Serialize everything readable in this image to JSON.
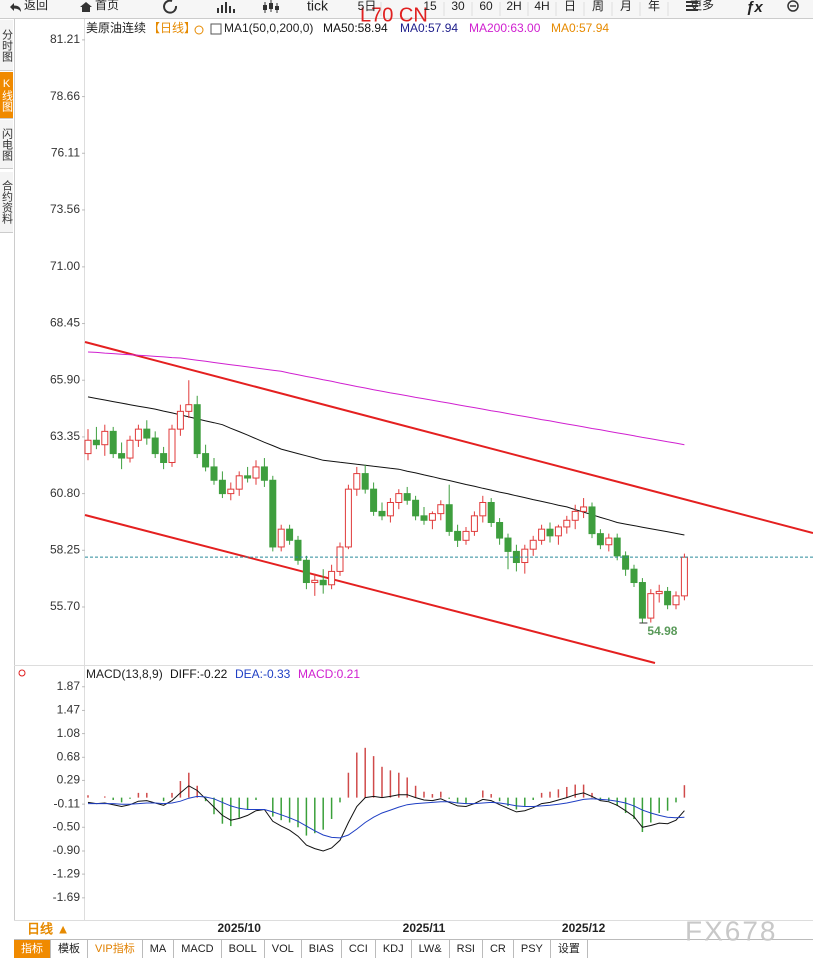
{
  "toolbar": {
    "back": "返回",
    "home": "首页",
    "tick": "tick",
    "periods": [
      "5日",
      "15",
      "30",
      "60",
      "2H",
      "4H",
      "日",
      "周",
      "月",
      "年"
    ],
    "more": "更多",
    "symbol": "L70 CN"
  },
  "sidebar": [
    "分时图",
    "K线图",
    "闪电图",
    "合约资料"
  ],
  "period_button": "日线 ▲",
  "tabs": [
    "指标",
    "模板",
    "VIP指标",
    "MA",
    "MACD",
    "BOLL",
    "VOL",
    "BIAS",
    "CCI",
    "KDJ",
    "LW&",
    "RSI",
    "CR",
    "PSY",
    "设置"
  ],
  "watermark": "FX678",
  "chart_data": [
    {
      "type": "candlestick",
      "title": "美原油连续",
      "subtitle": "【日线】",
      "indicator": "MA1(50,0,200,0)",
      "categories": [
        null,
        null,
        null,
        null,
        null,
        null,
        null,
        null,
        null,
        null,
        null,
        null,
        null,
        null,
        null,
        null,
        null,
        null,
        "2025/10",
        null,
        null,
        null,
        null,
        null,
        null,
        null,
        null,
        null,
        null,
        null,
        null,
        null,
        null,
        null,
        null,
        null,
        null,
        null,
        null,
        null,
        "2025/11",
        null,
        null,
        null,
        null,
        null,
        null,
        null,
        null,
        null,
        null,
        null,
        null,
        null,
        null,
        null,
        null,
        null,
        null,
        "2025/12",
        null,
        null,
        null,
        null,
        null,
        null,
        null,
        null,
        null,
        null,
        null,
        null
      ],
      "open": [
        62.6,
        63.2,
        63.0,
        63.6,
        62.6,
        62.4,
        63.2,
        63.7,
        63.3,
        62.6,
        62.2,
        63.7,
        64.5,
        64.8,
        62.6,
        62.0,
        61.4,
        60.8,
        61.0,
        61.6,
        61.5,
        62.0,
        61.4,
        58.4,
        59.2,
        58.7,
        57.8,
        56.8,
        56.9,
        56.7,
        57.3,
        58.4,
        61.0,
        61.7,
        61.0,
        60.0,
        59.8,
        60.4,
        60.8,
        60.5,
        59.8,
        59.6,
        59.9,
        60.3,
        59.1,
        58.7,
        59.1,
        59.8,
        60.4,
        59.5,
        58.8,
        58.2,
        57.7,
        58.3,
        58.7,
        59.2,
        58.9,
        59.3,
        59.6,
        60.0,
        60.2,
        59.0,
        58.5,
        58.8,
        58.0,
        57.4,
        56.8,
        55.2,
        56.3,
        56.4,
        55.8,
        56.2
      ],
      "high": [
        63.7,
        63.8,
        63.9,
        63.8,
        63.1,
        63.4,
        63.9,
        64.1,
        63.6,
        62.9,
        63.9,
        64.8,
        65.9,
        65.2,
        63.0,
        62.4,
        61.8,
        61.3,
        61.8,
        62.0,
        62.3,
        62.4,
        61.6,
        59.4,
        59.4,
        58.9,
        58.0,
        57.2,
        57.4,
        57.6,
        58.6,
        61.2,
        62.0,
        62.1,
        61.3,
        60.4,
        60.6,
        61.0,
        61.1,
        60.7,
        60.2,
        60.0,
        60.5,
        61.2,
        59.4,
        59.3,
        60.0,
        60.7,
        60.6,
        59.7,
        59.0,
        58.5,
        58.5,
        58.9,
        59.4,
        59.5,
        59.4,
        59.8,
        60.3,
        60.6,
        60.4,
        59.2,
        59.0,
        59.0,
        58.2,
        57.6,
        57.0,
        56.5,
        56.7,
        56.6,
        56.4,
        58.1
      ],
      "low": [
        62.3,
        62.8,
        62.5,
        62.4,
        61.9,
        62.2,
        62.9,
        63.0,
        62.4,
        61.9,
        62.0,
        63.4,
        64.2,
        62.4,
        61.8,
        61.2,
        60.6,
        60.5,
        60.7,
        61.3,
        61.2,
        61.1,
        58.2,
        58.2,
        58.5,
        57.6,
        56.5,
        56.2,
        56.3,
        56.5,
        57.1,
        58.3,
        60.7,
        60.8,
        59.8,
        59.6,
        59.5,
        60.1,
        60.3,
        59.6,
        59.4,
        59.2,
        59.6,
        58.9,
        58.4,
        58.5,
        58.9,
        59.5,
        59.3,
        58.5,
        57.4,
        57.3,
        57.2,
        58.0,
        58.5,
        58.6,
        58.5,
        59.0,
        59.2,
        59.7,
        58.8,
        58.3,
        58.2,
        57.8,
        57.1,
        56.6,
        54.98,
        55.0,
        55.9,
        55.6,
        55.6,
        56.0
      ],
      "close": [
        63.2,
        63.0,
        63.6,
        62.6,
        62.4,
        63.2,
        63.7,
        63.3,
        62.6,
        62.2,
        63.7,
        64.5,
        64.8,
        62.6,
        62.0,
        61.4,
        60.8,
        61.0,
        61.6,
        61.5,
        62.0,
        61.4,
        58.4,
        59.2,
        58.7,
        57.8,
        56.8,
        56.9,
        56.7,
        57.3,
        58.4,
        61.0,
        61.7,
        61.0,
        60.0,
        59.8,
        60.4,
        60.8,
        60.5,
        59.8,
        59.6,
        59.9,
        60.3,
        59.1,
        58.7,
        59.1,
        59.8,
        60.4,
        59.5,
        58.8,
        58.2,
        57.7,
        58.3,
        58.7,
        59.2,
        58.9,
        59.3,
        59.6,
        60.0,
        60.2,
        59.0,
        58.5,
        58.8,
        58.0,
        57.4,
        56.8,
        55.2,
        56.3,
        56.4,
        55.8,
        56.2,
        57.94
      ],
      "series": [
        {
          "name": "MA50:58.94",
          "color": "#111111",
          "values": [
            65.15,
            65.08,
            65.01,
            64.94,
            64.87,
            64.8,
            64.73,
            64.67,
            64.6,
            64.51,
            64.43,
            64.34,
            64.25,
            64.16,
            64.07,
            63.99,
            63.9,
            63.74,
            63.59,
            63.43,
            63.27,
            63.11,
            62.96,
            62.8,
            62.7,
            62.6,
            62.5,
            62.4,
            62.3,
            62.26,
            62.21,
            62.17,
            62.12,
            62.08,
            62.03,
            61.99,
            61.94,
            61.9,
            61.81,
            61.73,
            61.64,
            61.56,
            61.47,
            61.39,
            61.3,
            61.21,
            61.13,
            61.04,
            60.96,
            60.87,
            60.79,
            60.7,
            60.62,
            60.53,
            60.45,
            60.37,
            60.28,
            60.2,
            60.08,
            59.97,
            59.85,
            59.73,
            59.62,
            59.5,
            59.43,
            59.36,
            59.29,
            59.22,
            59.15,
            59.08,
            59.01,
            58.94
          ]
        },
        {
          "name": "MA0:57.94",
          "color": "#1c1c8a"
        },
        {
          "name": "MA200:63.00",
          "color": "#d020d0",
          "values": [
            67.17,
            67.15,
            67.12,
            67.1,
            67.07,
            67.05,
            67.02,
            67.0,
            66.97,
            66.95,
            66.92,
            66.9,
            66.85,
            66.8,
            66.75,
            66.7,
            66.65,
            66.6,
            66.55,
            66.5,
            66.45,
            66.4,
            66.35,
            66.3,
            66.22,
            66.15,
            66.07,
            66.0,
            65.92,
            65.85,
            65.77,
            65.7,
            65.62,
            65.55,
            65.47,
            65.4,
            65.33,
            65.27,
            65.2,
            65.13,
            65.07,
            65.0,
            64.93,
            64.87,
            64.8,
            64.73,
            64.67,
            64.6,
            64.53,
            64.47,
            64.4,
            64.33,
            64.27,
            64.2,
            64.13,
            64.07,
            64.0,
            63.93,
            63.87,
            63.8,
            63.73,
            63.67,
            63.6,
            63.53,
            63.47,
            63.4,
            63.33,
            63.27,
            63.2,
            63.13,
            63.07,
            63.0
          ]
        },
        {
          "name": "MA0:57.94",
          "color": "#e68a00"
        }
      ],
      "ylim": [
        53.18,
        81.79
      ],
      "yticks": [
        81.21,
        78.66,
        76.11,
        73.56,
        {
          "value": 71,
          "label": "71.00"
        },
        68.45,
        {
          "value": 65.9,
          "label": "65.90"
        },
        63.35,
        {
          "value": 60.8,
          "label": "60.80"
        },
        58.25,
        {
          "value": 55.7,
          "label": "55.70"
        }
      ],
      "grid": false,
      "up_color": "#e03a3a",
      "down_color": "#3e9e3e",
      "price_line_color": "#2a8a9a"
    },
    {
      "type": "macd",
      "title": "MACD(13,8,9)",
      "series": [
        {
          "name": "DIFF:-0.22",
          "color": "#111111",
          "kind": "line",
          "values": [
            -0.08,
            -0.1,
            -0.09,
            -0.12,
            -0.15,
            -0.12,
            -0.06,
            -0.05,
            -0.09,
            -0.13,
            -0.05,
            0.08,
            0.2,
            0.12,
            -0.02,
            -0.16,
            -0.3,
            -0.38,
            -0.35,
            -0.3,
            -0.22,
            -0.2,
            -0.4,
            -0.48,
            -0.55,
            -0.65,
            -0.8,
            -0.86,
            -0.9,
            -0.85,
            -0.72,
            -0.42,
            -0.15,
            0.0,
            0.02,
            0.0,
            0.02,
            0.05,
            0.05,
            0.0,
            -0.04,
            -0.05,
            -0.02,
            -0.08,
            -0.14,
            -0.15,
            -0.1,
            -0.03,
            -0.05,
            -0.12,
            -0.18,
            -0.24,
            -0.22,
            -0.17,
            -0.1,
            -0.08,
            -0.04,
            0.0,
            0.05,
            0.08,
            0.02,
            -0.05,
            -0.07,
            -0.13,
            -0.22,
            -0.32,
            -0.5,
            -0.47,
            -0.43,
            -0.44,
            -0.38,
            -0.22
          ]
        },
        {
          "name": "DEA:-0.33",
          "color": "#1f3fc4",
          "kind": "line",
          "values": [
            -0.1,
            -0.1,
            -0.1,
            -0.1,
            -0.11,
            -0.11,
            -0.1,
            -0.09,
            -0.09,
            -0.1,
            -0.09,
            -0.06,
            -0.01,
            0.02,
            0.01,
            -0.02,
            -0.08,
            -0.14,
            -0.18,
            -0.2,
            -0.2,
            -0.2,
            -0.24,
            -0.29,
            -0.34,
            -0.4,
            -0.48,
            -0.56,
            -0.63,
            -0.67,
            -0.68,
            -0.63,
            -0.53,
            -0.42,
            -0.33,
            -0.26,
            -0.21,
            -0.16,
            -0.12,
            -0.1,
            -0.09,
            -0.08,
            -0.07,
            -0.07,
            -0.09,
            -0.1,
            -0.1,
            -0.09,
            -0.08,
            -0.09,
            -0.11,
            -0.14,
            -0.15,
            -0.15,
            -0.14,
            -0.13,
            -0.11,
            -0.09,
            -0.06,
            -0.03,
            -0.02,
            -0.03,
            -0.04,
            -0.06,
            -0.09,
            -0.14,
            -0.21,
            -0.26,
            -0.3,
            -0.33,
            -0.34,
            -0.33
          ]
        },
        {
          "name": "MACD:0.21",
          "color": "#d020d0",
          "kind": "bar",
          "up_color": "#d04a4a",
          "down_color": "#3aa03a",
          "values": [
            0.04,
            0.0,
            0.02,
            -0.04,
            -0.08,
            -0.02,
            0.08,
            0.08,
            0.0,
            -0.06,
            0.08,
            0.28,
            0.42,
            0.2,
            -0.06,
            -0.28,
            -0.44,
            -0.48,
            -0.34,
            -0.2,
            -0.04,
            0.0,
            -0.32,
            -0.38,
            -0.42,
            -0.5,
            -0.64,
            -0.6,
            -0.54,
            -0.36,
            -0.08,
            0.42,
            0.76,
            0.84,
            0.7,
            0.52,
            0.46,
            0.42,
            0.34,
            0.2,
            0.1,
            0.06,
            0.1,
            -0.02,
            -0.1,
            -0.1,
            0.0,
            0.12,
            0.06,
            -0.06,
            -0.14,
            -0.2,
            -0.14,
            -0.04,
            0.08,
            0.1,
            0.14,
            0.18,
            0.22,
            0.22,
            0.08,
            -0.04,
            -0.06,
            -0.14,
            -0.26,
            -0.36,
            -0.58,
            -0.42,
            -0.26,
            -0.22,
            -0.08,
            0.21
          ]
        }
      ],
      "ylim": [
        -2.03,
        1.95
      ],
      "yticks": [
        1.87,
        1.47,
        1.08,
        0.68,
        0.29,
        -0.11,
        {
          "value": -0.5,
          "label": "-0.50"
        },
        {
          "value": -0.9,
          "label": "-0.90"
        },
        -1.29,
        -1.69
      ]
    }
  ]
}
